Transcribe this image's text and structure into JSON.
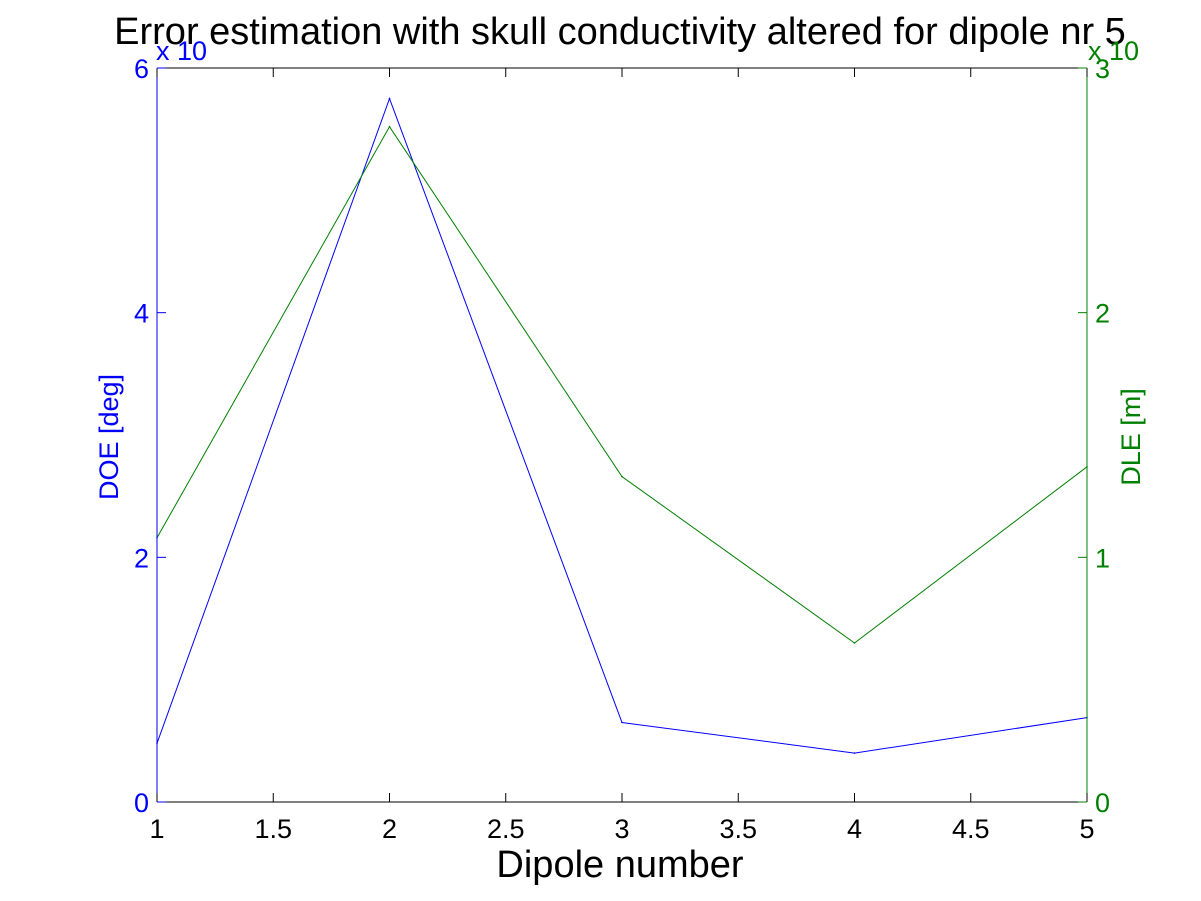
{
  "chart_data": {
    "type": "line",
    "title": "Error estimation with skull conductivity altered for dipole nr 5",
    "xlabel": "Dipole number",
    "ylabel": "DOE [deg]",
    "y2label": "DLE [m]",
    "x": [
      1,
      2,
      3,
      4,
      5
    ],
    "xlim": [
      1,
      5
    ],
    "x_ticks": [
      "1",
      "1.5",
      "2",
      "2.5",
      "3",
      "3.5",
      "4",
      "4.5",
      "5"
    ],
    "ylim": [
      0,
      6
    ],
    "y_ticks": [
      "0",
      "2",
      "4",
      "6"
    ],
    "y_exponent_label": "x 10",
    "y2lim": [
      0,
      3
    ],
    "y2_ticks": [
      "0",
      "1",
      "2",
      "3"
    ],
    "y2_exponent_label": "x 10",
    "grid": false,
    "series": [
      {
        "axis": "left",
        "color": "#0000ff",
        "values": [
          0.48,
          5.75,
          0.65,
          0.4,
          0.69
        ]
      },
      {
        "axis": "right",
        "color": "#008000",
        "values": [
          1.08,
          2.76,
          1.33,
          0.65,
          1.37
        ]
      }
    ]
  },
  "colors": {
    "left_axis": "#0000ff",
    "right_axis": "#008000",
    "bottom_axis": "#000000"
  }
}
